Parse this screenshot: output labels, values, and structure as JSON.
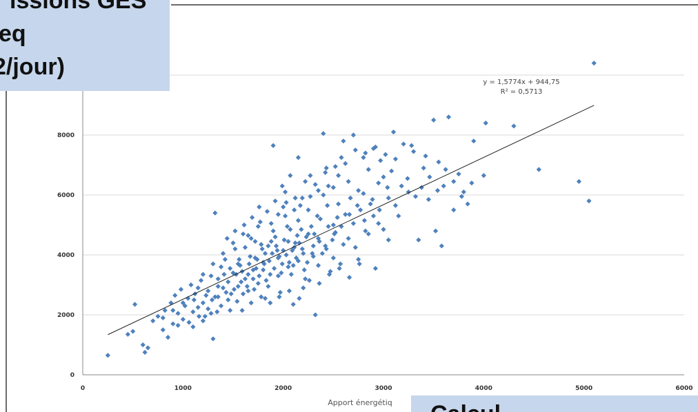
{
  "title_box": {
    "line1": "issions GES",
    "line2": "eq",
    "line3": "2/jour)"
  },
  "corner_box": {
    "text": "Calcul..."
  },
  "chart_data": {
    "type": "scatter",
    "xlabel": "Apport énergétiq",
    "ylabel": "",
    "xlim": [
      0,
      6000
    ],
    "ylim": [
      0,
      10000
    ],
    "x_ticks": [
      "0",
      "1000",
      "2000",
      "3000",
      "4000",
      "5000",
      "6000"
    ],
    "y_ticks": [
      "0",
      "2000",
      "4000",
      "6000",
      "8000"
    ],
    "grid": true,
    "trendline": {
      "equation": "y = 1,5774x + 944,75",
      "r2": "R² = 0,5713",
      "slope": 1.5774,
      "intercept": 944.75,
      "x_range": [
        250,
        5100
      ]
    },
    "marker_color": "#4f81bd",
    "points": [
      [
        250,
        650
      ],
      [
        450,
        1350
      ],
      [
        500,
        1450
      ],
      [
        520,
        2350
      ],
      [
        600,
        1000
      ],
      [
        620,
        750
      ],
      [
        650,
        900
      ],
      [
        700,
        1800
      ],
      [
        750,
        1950
      ],
      [
        800,
        1500
      ],
      [
        820,
        2150
      ],
      [
        850,
        1250
      ],
      [
        880,
        2400
      ],
      [
        900,
        1700
      ],
      [
        920,
        2650
      ],
      [
        950,
        2050
      ],
      [
        980,
        2850
      ],
      [
        1000,
        1850
      ],
      [
        1020,
        2300
      ],
      [
        1050,
        2550
      ],
      [
        1080,
        3000
      ],
      [
        1100,
        1600
      ],
      [
        1120,
        2700
      ],
      [
        1150,
        2250
      ],
      [
        1180,
        3150
      ],
      [
        1200,
        2400
      ],
      [
        1220,
        1950
      ],
      [
        1250,
        2800
      ],
      [
        1280,
        3300
      ],
      [
        1300,
        1200
      ],
      [
        1320,
        5400
      ],
      [
        1350,
        2600
      ],
      [
        1380,
        3600
      ],
      [
        1400,
        2900
      ],
      [
        1420,
        3850
      ],
      [
        1450,
        3100
      ],
      [
        1480,
        2700
      ],
      [
        1500,
        3400
      ],
      [
        1520,
        4200
      ],
      [
        1550,
        2950
      ],
      [
        1570,
        3650
      ],
      [
        1600,
        4700
      ],
      [
        1620,
        3200
      ],
      [
        1650,
        2800
      ],
      [
        1670,
        3950
      ],
      [
        1700,
        3500
      ],
      [
        1720,
        4450
      ],
      [
        1750,
        3050
      ],
      [
        1770,
        5100
      ],
      [
        1800,
        3750
      ],
      [
        1820,
        2550
      ],
      [
        1850,
        4300
      ],
      [
        1870,
        3350
      ],
      [
        1900,
        7650
      ],
      [
        1920,
        4600
      ],
      [
        1950,
        3900
      ],
      [
        1970,
        2750
      ],
      [
        2000,
        4150
      ],
      [
        2020,
        5300
      ],
      [
        2050,
        3600
      ],
      [
        2070,
        4850
      ],
      [
        2100,
        2350
      ],
      [
        2120,
        4400
      ],
      [
        2150,
        3800
      ],
      [
        2170,
        5650
      ],
      [
        2200,
        4050
      ],
      [
        2220,
        3200
      ],
      [
        2250,
        4700
      ],
      [
        2270,
        5950
      ],
      [
        2300,
        3950
      ],
      [
        2320,
        2000
      ],
      [
        2350,
        4550
      ],
      [
        2370,
        5200
      ],
      [
        2400,
        8050
      ],
      [
        2420,
        4300
      ],
      [
        2450,
        6300
      ],
      [
        2470,
        3450
      ],
      [
        2500,
        5000
      ],
      [
        2520,
        4750
      ],
      [
        2550,
        6650
      ],
      [
        2570,
        3700
      ],
      [
        2600,
        7800
      ],
      [
        2620,
        5350
      ],
      [
        2650,
        4550
      ],
      [
        2670,
        5900
      ],
      [
        2700,
        8000
      ],
      [
        2720,
        4250
      ],
      [
        2750,
        6150
      ],
      [
        2770,
        5500
      ],
      [
        2800,
        7250
      ],
      [
        2820,
        4800
      ],
      [
        2850,
        6850
      ],
      [
        2870,
        5700
      ],
      [
        2900,
        7550
      ],
      [
        2920,
        3550
      ],
      [
        2950,
        6400
      ],
      [
        2970,
        7150
      ],
      [
        3000,
        4850
      ],
      [
        3020,
        7350
      ],
      [
        3050,
        5900
      ],
      [
        3080,
        6800
      ],
      [
        3100,
        8100
      ],
      [
        3150,
        5300
      ],
      [
        3200,
        7700
      ],
      [
        3250,
        6100
      ],
      [
        3300,
        7450
      ],
      [
        3350,
        4500
      ],
      [
        3400,
        6900
      ],
      [
        3450,
        5850
      ],
      [
        3500,
        8500
      ],
      [
        3520,
        4800
      ],
      [
        3550,
        7100
      ],
      [
        3580,
        4300
      ],
      [
        3600,
        6300
      ],
      [
        3650,
        8600
      ],
      [
        3700,
        5500
      ],
      [
        3750,
        6700
      ],
      [
        3800,
        6100
      ],
      [
        3900,
        7800
      ],
      [
        4000,
        6650
      ],
      [
        4020,
        8400
      ],
      [
        4300,
        8300
      ],
      [
        4550,
        6850
      ],
      [
        4950,
        6450
      ],
      [
        5050,
        5800
      ],
      [
        5100,
        10400
      ],
      [
        1100,
        2100
      ],
      [
        1150,
        2900
      ],
      [
        1200,
        3350
      ],
      [
        1250,
        2200
      ],
      [
        1300,
        3700
      ],
      [
        1350,
        3200
      ],
      [
        1400,
        4050
      ],
      [
        1450,
        2500
      ],
      [
        1500,
        4400
      ],
      [
        1550,
        3700
      ],
      [
        1600,
        2700
      ],
      [
        1650,
        4650
      ],
      [
        1700,
        3200
      ],
      [
        1750,
        4950
      ],
      [
        1800,
        3500
      ],
      [
        1850,
        2950
      ],
      [
        1900,
        4800
      ],
      [
        1950,
        3300
      ],
      [
        2000,
        5600
      ],
      [
        2050,
        4450
      ],
      [
        2100,
        3650
      ],
      [
        2150,
        5150
      ],
      [
        2200,
        2900
      ],
      [
        2250,
        5500
      ],
      [
        2300,
        4300
      ],
      [
        2350,
        3650
      ],
      [
        2400,
        6000
      ],
      [
        2450,
        4950
      ],
      [
        2500,
        3900
      ],
      [
        2550,
        5700
      ],
      [
        2600,
        4350
      ],
      [
        2650,
        6450
      ],
      [
        2700,
        5050
      ],
      [
        2750,
        3850
      ],
      [
        2800,
        6050
      ],
      [
        2850,
        4700
      ],
      [
        2900,
        5300
      ],
      [
        2950,
        5050
      ],
      [
        3000,
        6600
      ],
      [
        3050,
        4500
      ],
      [
        1560,
        3850
      ],
      [
        1620,
        4250
      ],
      [
        1680,
        4550
      ],
      [
        1740,
        3850
      ],
      [
        1780,
        4350
      ],
      [
        1820,
        4050
      ],
      [
        1880,
        4450
      ],
      [
        1940,
        4150
      ],
      [
        1990,
        3700
      ],
      [
        2040,
        4950
      ],
      [
        2080,
        3350
      ],
      [
        2140,
        4650
      ],
      [
        2180,
        4850
      ],
      [
        2240,
        3750
      ],
      [
        2280,
        4950
      ],
      [
        2340,
        5300
      ],
      [
        2390,
        4050
      ],
      [
        2440,
        5650
      ],
      [
        2490,
        4500
      ],
      [
        2540,
        5250
      ],
      [
        1650,
        3350
      ],
      [
        1720,
        3900
      ],
      [
        1790,
        4200
      ],
      [
        1860,
        3800
      ],
      [
        1930,
        4300
      ],
      [
        2010,
        4500
      ],
      [
        2090,
        4150
      ],
      [
        2160,
        4400
      ],
      [
        2230,
        4600
      ],
      [
        2310,
        4700
      ],
      [
        1530,
        3350
      ],
      [
        1590,
        3450
      ],
      [
        1660,
        3700
      ],
      [
        1730,
        3550
      ],
      [
        1810,
        3700
      ],
      [
        1890,
        4050
      ],
      [
        1960,
        3950
      ],
      [
        2030,
        4000
      ],
      [
        2110,
        4250
      ],
      [
        2190,
        4200
      ],
      [
        1350,
        2950
      ],
      [
        1410,
        3350
      ],
      [
        1470,
        3550
      ],
      [
        1510,
        2850
      ],
      [
        1580,
        3100
      ],
      [
        1640,
        2950
      ],
      [
        1710,
        2850
      ],
      [
        1760,
        3300
      ],
      [
        1830,
        3150
      ],
      [
        1910,
        3550
      ],
      [
        1980,
        3400
      ],
      [
        2060,
        3750
      ],
      [
        2130,
        3900
      ],
      [
        2210,
        3500
      ],
      [
        2290,
        4050
      ],
      [
        2360,
        4450
      ],
      [
        2430,
        4200
      ],
      [
        2510,
        4700
      ],
      [
        2580,
        4950
      ],
      [
        2660,
        5350
      ],
      [
        2740,
        5650
      ],
      [
        2810,
        5150
      ],
      [
        2890,
        5850
      ],
      [
        2960,
        5500
      ],
      [
        3040,
        6250
      ],
      [
        3120,
        5650
      ],
      [
        3180,
        6300
      ],
      [
        3240,
        6550
      ],
      [
        3320,
        5950
      ],
      [
        3380,
        6250
      ],
      [
        3460,
        6600
      ],
      [
        3540,
        6150
      ],
      [
        3620,
        6850
      ],
      [
        3700,
        6450
      ],
      [
        3780,
        5950
      ],
      [
        3840,
        5700
      ],
      [
        3880,
        6400
      ],
      [
        3120,
        7200
      ],
      [
        3280,
        7650
      ],
      [
        3420,
        7300
      ],
      [
        1200,
        1800
      ],
      [
        1280,
        2050
      ],
      [
        1320,
        2600
      ],
      [
        1380,
        2300
      ],
      [
        1430,
        2750
      ],
      [
        1470,
        2150
      ],
      [
        1540,
        2450
      ],
      [
        1590,
        2150
      ],
      [
        1680,
        2400
      ],
      [
        1780,
        2600
      ],
      [
        1870,
        2400
      ],
      [
        1960,
        2600
      ],
      [
        2060,
        2800
      ],
      [
        2160,
        2550
      ],
      [
        2260,
        3150
      ],
      [
        2360,
        3050
      ],
      [
        2460,
        3350
      ],
      [
        2560,
        3550
      ],
      [
        2660,
        3250
      ],
      [
        2760,
        3700
      ],
      [
        800,
        1900
      ],
      [
        900,
        2150
      ],
      [
        950,
        1650
      ],
      [
        1000,
        2400
      ],
      [
        1060,
        1750
      ],
      [
        1110,
        2500
      ],
      [
        1160,
        1950
      ],
      [
        1230,
        2650
      ],
      [
        1290,
        2500
      ],
      [
        1340,
        2100
      ],
      [
        2020,
        6100
      ],
      [
        2120,
        5900
      ],
      [
        2220,
        6450
      ],
      [
        2320,
        6350
      ],
      [
        2420,
        6750
      ],
      [
        2520,
        6950
      ],
      [
        2620,
        7050
      ],
      [
        2720,
        7500
      ],
      [
        2820,
        7400
      ],
      [
        2920,
        7600
      ],
      [
        1880,
        5050
      ],
      [
        1950,
        5350
      ],
      [
        2030,
        5750
      ],
      [
        2110,
        5500
      ],
      [
        2190,
        5900
      ],
      [
        2270,
        6650
      ],
      [
        2350,
        6150
      ],
      [
        2430,
        6900
      ],
      [
        2500,
        6250
      ],
      [
        2580,
        7250
      ],
      [
        1440,
        4550
      ],
      [
        1520,
        4800
      ],
      [
        1610,
        5000
      ],
      [
        1690,
        5250
      ],
      [
        1760,
        5600
      ],
      [
        1840,
        5450
      ],
      [
        1920,
        5800
      ],
      [
        1990,
        6300
      ],
      [
        2070,
        6650
      ],
      [
        2150,
        7250
      ]
    ]
  }
}
